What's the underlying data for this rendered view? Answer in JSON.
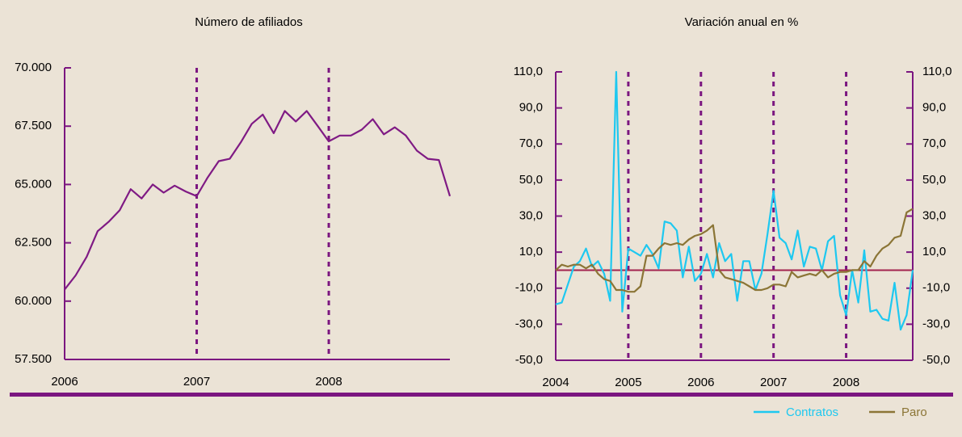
{
  "chart_data": [
    {
      "type": "line",
      "title": "Número de afiliados",
      "x": [
        2006.0,
        2006.083,
        2006.167,
        2006.25,
        2006.333,
        2006.417,
        2006.5,
        2006.583,
        2006.667,
        2006.75,
        2006.833,
        2006.917,
        2007.0,
        2007.083,
        2007.167,
        2007.25,
        2007.333,
        2007.417,
        2007.5,
        2007.583,
        2007.667,
        2007.75,
        2007.833,
        2007.917,
        2008.0,
        2008.083,
        2008.167,
        2008.25,
        2008.333,
        2008.417,
        2008.5,
        2008.583,
        2008.667,
        2008.75,
        2008.833,
        2008.917
      ],
      "series": [
        {
          "name": null,
          "color": "#7f1a84",
          "values": [
            60500,
            61100,
            61900,
            63000,
            63400,
            63900,
            64800,
            64400,
            65000,
            64650,
            64950,
            64700,
            64500,
            65300,
            66000,
            66100,
            66800,
            67600,
            68000,
            67200,
            68150,
            67700,
            68150,
            67500,
            66850,
            67100,
            67100,
            67350,
            67800,
            67150,
            67450,
            67100,
            66450,
            66100,
            66050,
            64500
          ]
        }
      ],
      "xlim": [
        2006,
        2008.917
      ],
      "xticks": [
        2006,
        2007,
        2008
      ],
      "ylim": [
        57500,
        70000
      ],
      "yticks": [
        {
          "value": 57500,
          "label": "57.500"
        },
        {
          "value": 60000,
          "label": "60.000"
        },
        {
          "value": 62500,
          "label": "62.500"
        },
        {
          "value": 65000,
          "label": "65.000"
        },
        {
          "value": 67500,
          "label": "67.500"
        },
        {
          "value": 70000,
          "label": "70.000"
        }
      ],
      "grid": "x",
      "axis_color": "#7b1680"
    },
    {
      "type": "line",
      "title": "Variación anual en %",
      "x": [
        2004.0,
        2004.083,
        2004.167,
        2004.25,
        2004.333,
        2004.417,
        2004.5,
        2004.583,
        2004.667,
        2004.75,
        2004.833,
        2004.917,
        2005.0,
        2005.083,
        2005.167,
        2005.25,
        2005.333,
        2005.417,
        2005.5,
        2005.583,
        2005.667,
        2005.75,
        2005.833,
        2005.917,
        2006.0,
        2006.083,
        2006.167,
        2006.25,
        2006.333,
        2006.417,
        2006.5,
        2006.583,
        2006.667,
        2006.75,
        2006.833,
        2006.917,
        2007.0,
        2007.083,
        2007.167,
        2007.25,
        2007.333,
        2007.417,
        2007.5,
        2007.583,
        2007.667,
        2007.75,
        2007.833,
        2007.917,
        2008.0,
        2008.083,
        2008.167,
        2008.25,
        2008.333,
        2008.417,
        2008.5,
        2008.583,
        2008.667,
        2008.75,
        2008.833,
        2008.917
      ],
      "series": [
        {
          "name": "Contratos",
          "color": "#1ec8f0",
          "values": [
            -19,
            -18,
            -8,
            2,
            5,
            12,
            2,
            5,
            -2,
            -17,
            110,
            -23,
            12,
            10,
            8,
            14,
            9,
            1,
            27,
            26,
            22,
            -4,
            13,
            -6,
            -2,
            9,
            -4,
            15,
            5,
            9,
            -17,
            5,
            5,
            -11,
            -2,
            20,
            44,
            18,
            15,
            6,
            22,
            2,
            13,
            12,
            0,
            16,
            19,
            -14,
            -25,
            0,
            -18,
            11,
            -23,
            -22,
            -27,
            -28,
            -7,
            -33,
            -25,
            0
          ]
        },
        {
          "name": "Paro",
          "color": "#8b7536",
          "values": [
            0,
            3,
            2,
            3,
            3,
            1,
            3,
            -2,
            -5,
            -6,
            -11,
            -11,
            -12,
            -12,
            -9,
            8,
            8,
            12,
            15,
            14,
            15,
            14,
            17,
            19,
            20,
            22,
            25,
            0,
            -4,
            -5,
            -6,
            -7,
            -9,
            -11,
            -11,
            -10,
            -8,
            -8,
            -9,
            -1,
            -4,
            -3,
            -2,
            -3,
            0,
            -4,
            -2,
            -1,
            -1,
            0,
            0,
            5,
            2,
            8,
            12,
            14,
            18,
            19,
            32,
            34
          ]
        }
      ],
      "xlim": [
        2004,
        2008.917
      ],
      "xticks": [
        2004,
        2005,
        2006,
        2007,
        2008
      ],
      "ylim": [
        -50,
        110
      ],
      "yticks": [
        {
          "value": -50,
          "label": "-50,0"
        },
        {
          "value": -30,
          "label": "-30,0"
        },
        {
          "value": -10,
          "label": "-10,0"
        },
        {
          "value": 10,
          "label": "10,0"
        },
        {
          "value": 30,
          "label": "30,0"
        },
        {
          "value": 50,
          "label": "50,0"
        },
        {
          "value": 70,
          "label": "70,0"
        },
        {
          "value": 90,
          "label": "90,0"
        },
        {
          "value": 110,
          "label": "110,0"
        }
      ],
      "y2lim": [
        -50,
        110
      ],
      "y2ticks": [
        {
          "value": -50,
          "label": "-50,0"
        },
        {
          "value": -30,
          "label": "-30,0"
        },
        {
          "value": -10,
          "label": "-10,0"
        },
        {
          "value": 10,
          "label": "10,0"
        },
        {
          "value": 30,
          "label": "30,0"
        },
        {
          "value": 50,
          "label": "50,0"
        },
        {
          "value": 70,
          "label": "70,0"
        },
        {
          "value": 90,
          "label": "90,0"
        },
        {
          "value": 110,
          "label": "110,0"
        }
      ],
      "hline": 0,
      "hline_color": "#a3234f",
      "grid": "x",
      "axis_color": "#7b1680",
      "legend": "bottom-right"
    }
  ]
}
